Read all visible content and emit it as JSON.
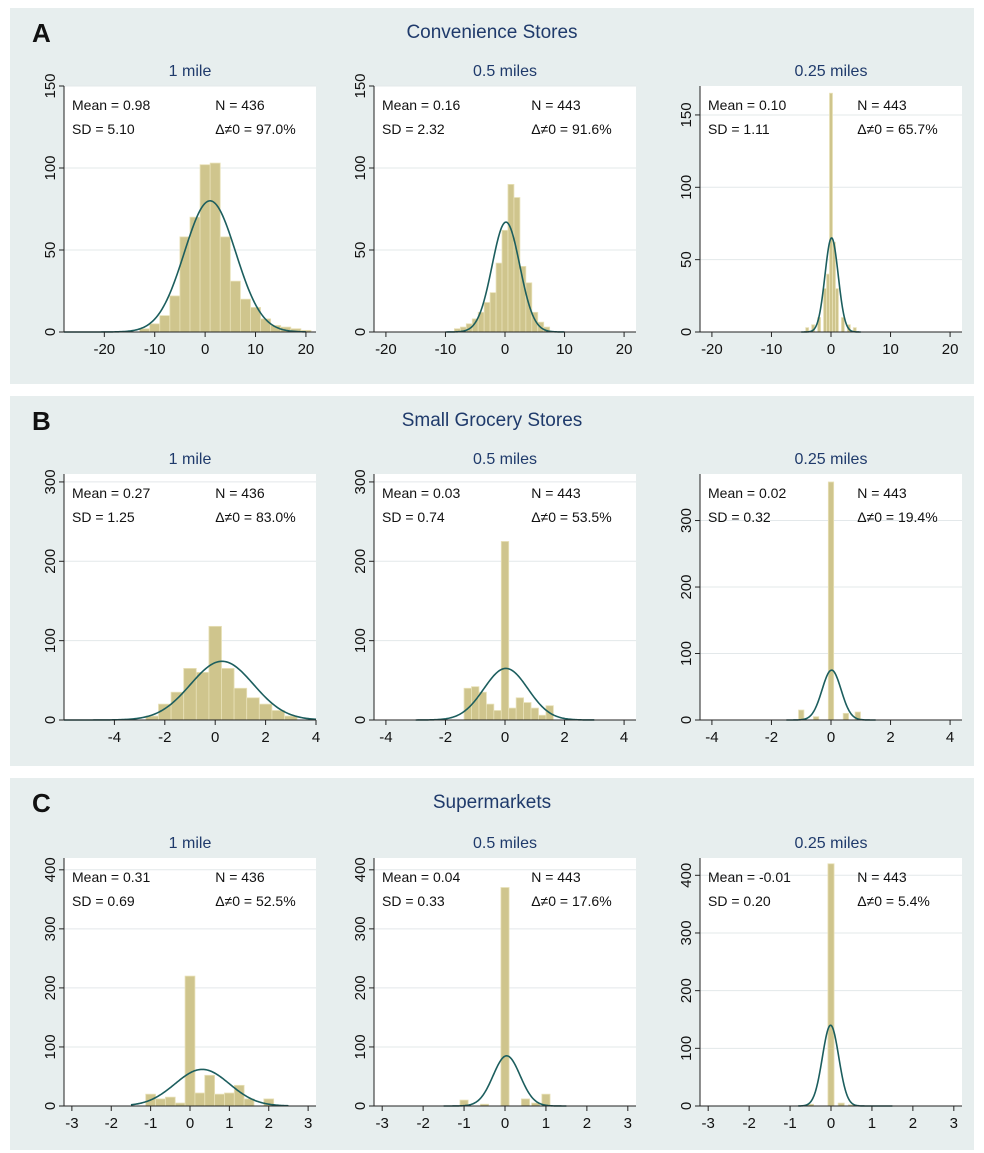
{
  "panels": [
    {
      "letter": "A",
      "title": "Convenience Stores"
    },
    {
      "letter": "B",
      "title": "Small Grocery Stores"
    },
    {
      "letter": "C",
      "title": "Supermarkets"
    }
  ],
  "colors": {
    "panel_bg": "#e7eeee",
    "bar_fill": "#cfc58d",
    "bar_stroke": "#e8e1b8",
    "curve": "#1c5e5e",
    "title_text": "#1f3a6b",
    "grid": "#e3e8ea"
  },
  "chart_data": [
    {
      "type": "bar",
      "panel": "A",
      "title": "1 mile",
      "xlim": [
        -28,
        22
      ],
      "ylim": [
        0,
        150
      ],
      "xticks": [
        -20,
        -10,
        0,
        10,
        20
      ],
      "yticks": [
        0,
        50,
        100,
        150
      ],
      "stats": {
        "mean": "Mean = 0.98",
        "sd": "SD = 5.10",
        "n": "N = 436",
        "nonzero": "Δ≠0 = 97.0%"
      },
      "bins": [
        [
          -12,
          2
        ],
        [
          -10,
          5
        ],
        [
          -8,
          10
        ],
        [
          -6,
          22
        ],
        [
          -4,
          58
        ],
        [
          -2,
          70
        ],
        [
          0,
          102
        ],
        [
          2,
          103
        ],
        [
          4,
          58
        ],
        [
          6,
          31
        ],
        [
          8,
          20
        ],
        [
          10,
          15
        ],
        [
          12,
          8
        ],
        [
          14,
          4
        ],
        [
          16,
          3
        ],
        [
          18,
          2
        ],
        [
          20,
          1
        ]
      ],
      "bin_width": 2,
      "curve": {
        "mean": 0.98,
        "sd": 5.1,
        "peak": 80,
        "range": [
          -28,
          20
        ]
      }
    },
    {
      "type": "bar",
      "panel": "A",
      "title": "0.5 miles",
      "xlim": [
        -22,
        22
      ],
      "ylim": [
        0,
        150
      ],
      "xticks": [
        -20,
        -10,
        0,
        10,
        20
      ],
      "yticks": [
        0,
        50,
        100,
        150
      ],
      "stats": {
        "mean": "Mean = 0.16",
        "sd": "SD = 2.32",
        "n": "N = 443",
        "nonzero": "Δ≠0 = 91.6%"
      },
      "bins": [
        [
          -8,
          2
        ],
        [
          -7,
          3
        ],
        [
          -6,
          5
        ],
        [
          -5,
          8
        ],
        [
          -4,
          12
        ],
        [
          -3,
          18
        ],
        [
          -2,
          24
        ],
        [
          -1,
          42
        ],
        [
          0,
          62
        ],
        [
          1,
          90
        ],
        [
          2,
          82
        ],
        [
          3,
          40
        ],
        [
          4,
          30
        ],
        [
          5,
          12
        ],
        [
          6,
          6
        ],
        [
          7,
          3
        ]
      ],
      "bin_width": 1,
      "curve": {
        "mean": 0.16,
        "sd": 2.32,
        "peak": 67,
        "range": [
          -10,
          10
        ]
      }
    },
    {
      "type": "bar",
      "panel": "A",
      "title": "0.25 miles",
      "xlim": [
        -22,
        22
      ],
      "ylim": [
        0,
        170
      ],
      "xticks": [
        -20,
        -10,
        0,
        10,
        20
      ],
      "yticks": [
        0,
        50,
        100,
        150
      ],
      "stats": {
        "mean": "Mean = 0.10",
        "sd": "SD = 1.11",
        "n": "N = 443",
        "nonzero": "Δ≠0 = 65.7%"
      },
      "bins": [
        [
          -4,
          3
        ],
        [
          -3,
          5
        ],
        [
          -2,
          10
        ],
        [
          -1,
          30
        ],
        [
          -0.5,
          40
        ],
        [
          0,
          165
        ],
        [
          0.5,
          62
        ],
        [
          1,
          30
        ],
        [
          2,
          10
        ],
        [
          3,
          5
        ],
        [
          4,
          3
        ]
      ],
      "bin_width": 0.5,
      "curve": {
        "mean": 0.1,
        "sd": 1.11,
        "peak": 65,
        "range": [
          -5,
          5
        ]
      }
    },
    {
      "type": "bar",
      "panel": "B",
      "title": "1 mile",
      "xlim": [
        -6,
        4
      ],
      "ylim": [
        0,
        310
      ],
      "xticks": [
        -4,
        -2,
        0,
        2,
        4
      ],
      "yticks": [
        0,
        100,
        200,
        300
      ],
      "stats": {
        "mean": "Mean = 0.27",
        "sd": "SD = 1.25",
        "n": "N = 436",
        "nonzero": "Δ≠0 = 83.0%"
      },
      "bins": [
        [
          -2.5,
          5
        ],
        [
          -2,
          20
        ],
        [
          -1.5,
          35
        ],
        [
          -1,
          65
        ],
        [
          -0.5,
          60
        ],
        [
          0,
          118
        ],
        [
          0.5,
          65
        ],
        [
          1,
          40
        ],
        [
          1.5,
          28
        ],
        [
          2,
          20
        ],
        [
          2.5,
          12
        ],
        [
          3,
          5
        ]
      ],
      "bin_width": 0.5,
      "curve": {
        "mean": 0.27,
        "sd": 1.25,
        "peak": 74,
        "range": [
          -6,
          4
        ]
      }
    },
    {
      "type": "bar",
      "panel": "B",
      "title": "0.5 miles",
      "xlim": [
        -4.4,
        4.4
      ],
      "ylim": [
        0,
        310
      ],
      "xticks": [
        -4,
        -2,
        0,
        2,
        4
      ],
      "yticks": [
        0,
        100,
        200,
        300
      ],
      "stats": {
        "mean": "Mean = 0.03",
        "sd": "SD = 0.74",
        "n": "N = 443",
        "nonzero": "Δ≠0 = 53.5%"
      },
      "bins": [
        [
          -1.25,
          40
        ],
        [
          -1,
          42
        ],
        [
          -0.75,
          35
        ],
        [
          -0.5,
          20
        ],
        [
          -0.25,
          12
        ],
        [
          0,
          225
        ],
        [
          0.25,
          15
        ],
        [
          0.5,
          28
        ],
        [
          0.75,
          22
        ],
        [
          1,
          15
        ],
        [
          1.25,
          6
        ],
        [
          1.5,
          18
        ]
      ],
      "bin_width": 0.25,
      "curve": {
        "mean": 0.03,
        "sd": 0.74,
        "peak": 65,
        "range": [
          -3,
          3
        ]
      }
    },
    {
      "type": "bar",
      "panel": "B",
      "title": "0.25 miles",
      "xlim": [
        -4.4,
        4.4
      ],
      "ylim": [
        0,
        370
      ],
      "xticks": [
        -4,
        -2,
        0,
        2,
        4
      ],
      "yticks": [
        0,
        100,
        200,
        300
      ],
      "stats": {
        "mean": "Mean = 0.02",
        "sd": "SD = 0.32",
        "n": "N = 443",
        "nonzero": "Δ≠0 = 19.4%"
      },
      "bins": [
        [
          -1,
          15
        ],
        [
          -0.5,
          5
        ],
        [
          0,
          358
        ],
        [
          0.5,
          10
        ],
        [
          0.9,
          12
        ]
      ],
      "bin_width": 0.18,
      "curve": {
        "mean": 0.02,
        "sd": 0.32,
        "peak": 75,
        "range": [
          -1.5,
          1.5
        ]
      }
    },
    {
      "type": "bar",
      "panel": "C",
      "title": "1 mile",
      "xlim": [
        -3.2,
        3.2
      ],
      "ylim": [
        0,
        420
      ],
      "xticks": [
        -3,
        -2,
        -1,
        0,
        1,
        2,
        3
      ],
      "yticks": [
        0,
        100,
        200,
        300,
        400
      ],
      "stats": {
        "mean": "Mean = 0.31",
        "sd": "SD = 0.69",
        "n": "N = 436",
        "nonzero": "Δ≠0 = 52.5%"
      },
      "bins": [
        [
          -1,
          20
        ],
        [
          -0.75,
          12
        ],
        [
          -0.5,
          15
        ],
        [
          -0.25,
          5
        ],
        [
          0,
          220
        ],
        [
          0.25,
          22
        ],
        [
          0.5,
          52
        ],
        [
          0.75,
          20
        ],
        [
          1,
          22
        ],
        [
          1.25,
          35
        ],
        [
          1.5,
          12
        ],
        [
          2,
          12
        ]
      ],
      "bin_width": 0.25,
      "curve": {
        "mean": 0.31,
        "sd": 0.69,
        "peak": 62,
        "range": [
          -1.5,
          2.5
        ]
      }
    },
    {
      "type": "bar",
      "panel": "C",
      "title": "0.5 miles",
      "xlim": [
        -3.2,
        3.2
      ],
      "ylim": [
        0,
        420
      ],
      "xticks": [
        -3,
        -2,
        -1,
        0,
        1,
        2,
        3
      ],
      "yticks": [
        0,
        100,
        200,
        300,
        400
      ],
      "stats": {
        "mean": "Mean = 0.04",
        "sd": "SD = 0.33",
        "n": "N = 443",
        "nonzero": "Δ≠0 = 17.6%"
      },
      "bins": [
        [
          -1,
          10
        ],
        [
          -0.5,
          3
        ],
        [
          0,
          370
        ],
        [
          0.5,
          12
        ],
        [
          0.75,
          5
        ],
        [
          1,
          20
        ]
      ],
      "bin_width": 0.2,
      "curve": {
        "mean": 0.04,
        "sd": 0.33,
        "peak": 85,
        "range": [
          -1.5,
          1.5
        ]
      }
    },
    {
      "type": "bar",
      "panel": "C",
      "title": "0.25 miles",
      "xlim": [
        -3.2,
        3.2
      ],
      "ylim": [
        0,
        430
      ],
      "xticks": [
        -3,
        -2,
        -1,
        0,
        1,
        2,
        3
      ],
      "yticks": [
        0,
        100,
        200,
        300,
        400
      ],
      "stats": {
        "mean": "Mean = -0.01",
        "sd": "SD = 0.20",
        "n": "N = 443",
        "nonzero": "Δ≠0 = 5.4%"
      },
      "bins": [
        [
          -0.5,
          3
        ],
        [
          0,
          420
        ],
        [
          0.25,
          5
        ],
        [
          0.5,
          2
        ]
      ],
      "bin_width": 0.15,
      "curve": {
        "mean": -0.01,
        "sd": 0.2,
        "peak": 140,
        "range": [
          -0.8,
          1.5
        ]
      }
    }
  ]
}
